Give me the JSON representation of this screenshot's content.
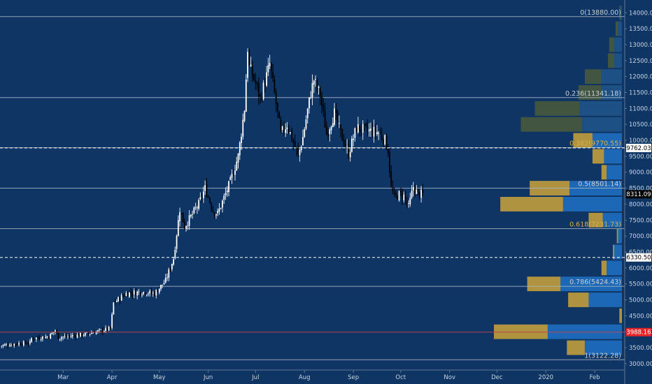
{
  "chart_data": {
    "type": "candlestick",
    "title": "",
    "xlabel": "",
    "ylabel": "",
    "ylim": [
      2800,
      14400
    ],
    "x_range": [
      "2019-01-20",
      "2020-02-20"
    ],
    "y_ticks": [
      "3000.00",
      "3500.00",
      "4000.00",
      "4500.00",
      "5000.00",
      "5500.00",
      "6000.00",
      "6500.00",
      "7000.00",
      "7500.00",
      "8000.00",
      "8500.00",
      "9000.00",
      "9500.00",
      "10000.00",
      "10500.00",
      "11000.00",
      "11500.00",
      "12000.00",
      "12500.00",
      "13000.00",
      "13500.00",
      "14000.00"
    ],
    "x_ticks": [
      {
        "date": "2019-03-01",
        "label": "Mar"
      },
      {
        "date": "2019-04-01",
        "label": "Apr"
      },
      {
        "date": "2019-05-01",
        "label": "May"
      },
      {
        "date": "2019-06-01",
        "label": "Jun"
      },
      {
        "date": "2019-07-01",
        "label": "Jul"
      },
      {
        "date": "2019-08-01",
        "label": "Aug"
      },
      {
        "date": "2019-09-01",
        "label": "Sep"
      },
      {
        "date": "2019-10-01",
        "label": "Oct"
      },
      {
        "date": "2019-11-01",
        "label": "Nov"
      },
      {
        "date": "2019-12-01",
        "label": "Dec"
      },
      {
        "date": "2020-01-01",
        "label": "2020"
      },
      {
        "date": "2020-02-01",
        "label": "Feb"
      }
    ],
    "fib_levels": [
      {
        "price": 13880.0,
        "label": "0(13880.00)",
        "color": "#c9cfd6"
      },
      {
        "price": 11341.18,
        "label": "0.236(11341.18)",
        "color": "#c9cfd6"
      },
      {
        "price": 9770.55,
        "label": "0.382(9770.55)",
        "color": "#d6b24b"
      },
      {
        "price": 8501.14,
        "label": "0.5(8501.14)",
        "color": "#c9cfd6"
      },
      {
        "price": 7231.73,
        "label": "0.618(7231.73)",
        "color": "#d6b24b"
      },
      {
        "price": 5424.43,
        "label": "0.786(5424.43)",
        "color": "#c9cfd6"
      },
      {
        "price": 3122.28,
        "label": "1(3122.28)",
        "color": "#c9cfd6"
      }
    ],
    "price_markers": [
      {
        "price": 9762.03,
        "label": "9762.03",
        "bg": "#ffffff",
        "fg": "#000000",
        "line": "dashed"
      },
      {
        "price": 8311.09,
        "label": "8311.09",
        "bg": "#000000",
        "fg": "#ffffff",
        "line": "none"
      },
      {
        "price": 6330.5,
        "label": "6330.50",
        "bg": "#ffffff",
        "fg": "#000000",
        "line": "dashed"
      },
      {
        "price": 3988.16,
        "label": "3988.16",
        "bg": "#e8252a",
        "fg": "#ffffff",
        "line": "solid-red"
      }
    ],
    "volume_profile": {
      "bin_size": 500,
      "bins": [
        {
          "lo": 3250,
          "up": 0.14,
          "down": 0.29,
          "style": "gold"
        },
        {
          "lo": 3750,
          "up": 0.42,
          "down": 0.58,
          "style": "gold"
        },
        {
          "lo": 4250,
          "up": 0.02,
          "down": 0.0,
          "style": "gold"
        },
        {
          "lo": 4750,
          "up": 0.16,
          "down": 0.26,
          "style": "gold"
        },
        {
          "lo": 5250,
          "up": 0.26,
          "down": 0.48,
          "style": "gold"
        },
        {
          "lo": 5750,
          "up": 0.04,
          "down": 0.12,
          "style": "gold"
        },
        {
          "lo": 6250,
          "up": 0.01,
          "down": 0.06,
          "style": "gold"
        },
        {
          "lo": 6750,
          "up": 0.01,
          "down": 0.03,
          "style": "gold"
        },
        {
          "lo": 7250,
          "up": 0.11,
          "down": 0.15,
          "style": "gold"
        },
        {
          "lo": 7750,
          "up": 0.49,
          "down": 0.46,
          "style": "gold"
        },
        {
          "lo": 8250,
          "up": 0.31,
          "down": 0.41,
          "style": "gold"
        },
        {
          "lo": 8750,
          "up": 0.04,
          "down": 0.12,
          "style": "gold"
        },
        {
          "lo": 9250,
          "up": 0.09,
          "down": 0.14,
          "style": "gold"
        },
        {
          "lo": 9750,
          "up": 0.15,
          "down": 0.23,
          "style": "gold"
        },
        {
          "lo": 10250,
          "up": 0.48,
          "down": 0.31,
          "style": "gray"
        },
        {
          "lo": 10750,
          "up": 0.35,
          "down": 0.33,
          "style": "gray"
        },
        {
          "lo": 11250,
          "up": 0.18,
          "down": 0.16,
          "style": "gray"
        },
        {
          "lo": 11750,
          "up": 0.13,
          "down": 0.16,
          "style": "gray"
        },
        {
          "lo": 12250,
          "up": 0.05,
          "down": 0.06,
          "style": "gray"
        },
        {
          "lo": 12750,
          "up": 0.04,
          "down": 0.06,
          "style": "gray"
        },
        {
          "lo": 13250,
          "up": 0.02,
          "down": 0.03,
          "style": "gray"
        },
        {
          "lo": 13750,
          "up": 0.01,
          "down": 0.01,
          "style": "gray"
        }
      ]
    },
    "price_path": [
      [
        "2019-01-20",
        3560
      ],
      [
        "2019-01-31",
        3630
      ],
      [
        "2019-02-08",
        3650
      ],
      [
        "2019-02-09",
        3790
      ],
      [
        "2019-02-20",
        3850
      ],
      [
        "2019-02-24",
        4050
      ],
      [
        "2019-02-26",
        3820
      ],
      [
        "2019-03-15",
        3920
      ],
      [
        "2019-03-31",
        4100
      ],
      [
        "2019-04-02",
        4900
      ],
      [
        "2019-04-10",
        5200
      ],
      [
        "2019-04-20",
        5250
      ],
      [
        "2019-04-28",
        5200
      ],
      [
        "2019-05-05",
        5600
      ],
      [
        "2019-05-10",
        6300
      ],
      [
        "2019-05-14",
        7850
      ],
      [
        "2019-05-17",
        7300
      ],
      [
        "2019-05-26",
        8000
      ],
      [
        "2019-05-30",
        8500
      ],
      [
        "2019-06-04",
        7800
      ],
      [
        "2019-06-07",
        7700
      ],
      [
        "2019-06-15",
        8700
      ],
      [
        "2019-06-20",
        9500
      ],
      [
        "2019-06-24",
        11000
      ],
      [
        "2019-06-26",
        12900
      ],
      [
        "2019-06-27",
        12300
      ],
      [
        "2019-07-01",
        11800
      ],
      [
        "2019-07-04",
        11300
      ],
      [
        "2019-07-09",
        12200
      ],
      [
        "2019-07-10",
        12400
      ],
      [
        "2019-07-17",
        10200
      ],
      [
        "2019-07-21",
        10500
      ],
      [
        "2019-07-28",
        9500
      ],
      [
        "2019-07-31",
        10100
      ],
      [
        "2019-08-05",
        11500
      ],
      [
        "2019-08-07",
        11900
      ],
      [
        "2019-08-11",
        11400
      ],
      [
        "2019-08-15",
        10200
      ],
      [
        "2019-08-20",
        10850
      ],
      [
        "2019-08-24",
        10200
      ],
      [
        "2019-08-29",
        9600
      ],
      [
        "2019-09-03",
        10400
      ],
      [
        "2019-09-10",
        10300
      ],
      [
        "2019-09-17",
        10250
      ],
      [
        "2019-09-21",
        10000
      ],
      [
        "2019-09-23",
        9700
      ],
      [
        "2019-09-25",
        8500
      ],
      [
        "2019-09-27",
        8200
      ],
      [
        "2019-09-30",
        8300
      ],
      [
        "2019-10-03",
        8250
      ],
      [
        "2019-10-06",
        7900
      ],
      [
        "2019-10-09",
        8550
      ],
      [
        "2019-10-12",
        8300
      ],
      [
        "2019-10-15",
        8311
      ]
    ]
  }
}
